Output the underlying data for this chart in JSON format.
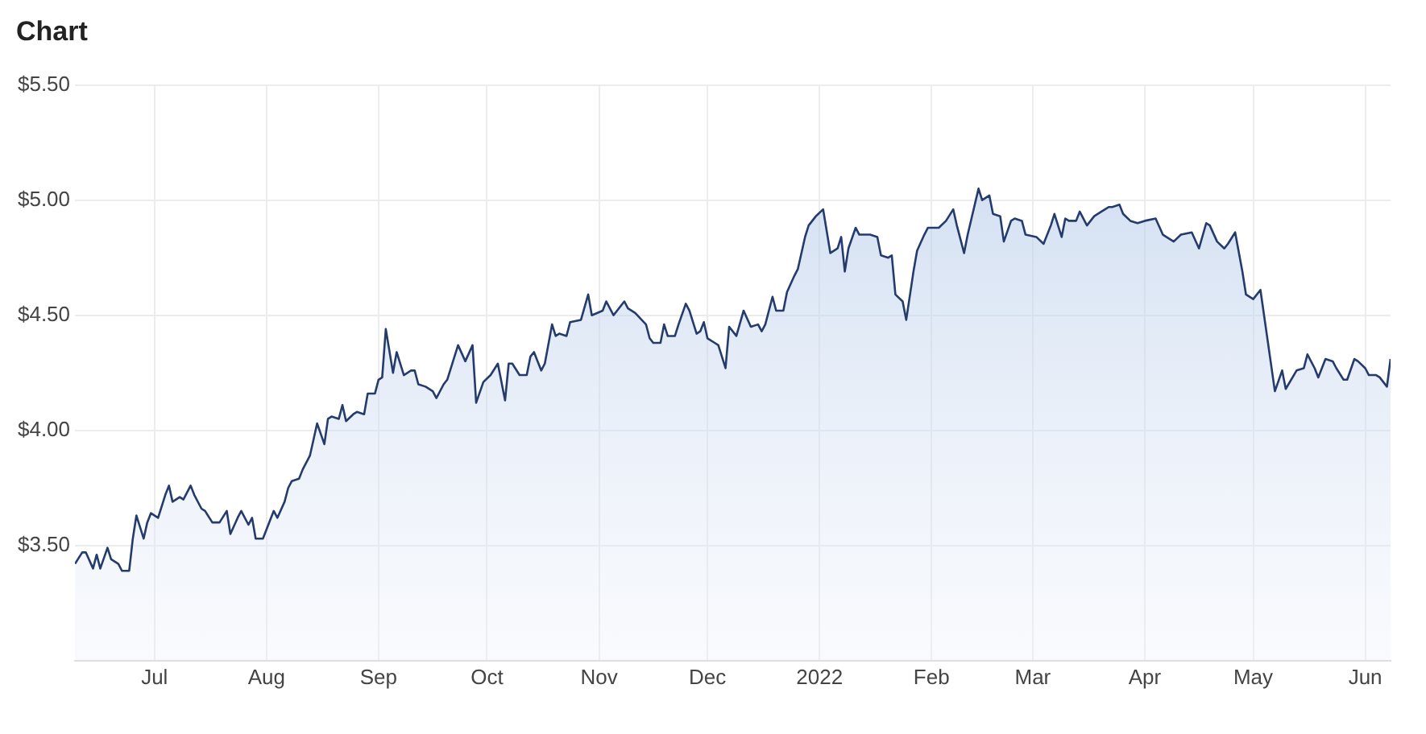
{
  "chart_data": {
    "type": "area",
    "title": "Chart",
    "x": [
      "2021-06-09",
      "2021-06-11",
      "2021-06-12",
      "2021-06-14",
      "2021-06-15",
      "2021-06-16",
      "2021-06-18",
      "2021-06-19",
      "2021-06-21",
      "2021-06-22",
      "2021-06-24",
      "2021-06-25",
      "2021-06-26",
      "2021-06-28",
      "2021-06-29",
      "2021-06-30",
      "2021-07-02",
      "2021-07-04",
      "2021-07-05",
      "2021-07-06",
      "2021-07-08",
      "2021-07-09",
      "2021-07-11",
      "2021-07-12",
      "2021-07-14",
      "2021-07-15",
      "2021-07-17",
      "2021-07-19",
      "2021-07-21",
      "2021-07-22",
      "2021-07-24",
      "2021-07-25",
      "2021-07-27",
      "2021-07-28",
      "2021-07-29",
      "2021-07-31",
      "2021-08-01",
      "2021-08-03",
      "2021-08-04",
      "2021-08-06",
      "2021-08-07",
      "2021-08-08",
      "2021-08-10",
      "2021-08-11",
      "2021-08-13",
      "2021-08-14",
      "2021-08-15",
      "2021-08-17",
      "2021-08-18",
      "2021-08-19",
      "2021-08-21",
      "2021-08-22",
      "2021-08-23",
      "2021-08-25",
      "2021-08-26",
      "2021-08-28",
      "2021-08-29",
      "2021-08-31",
      "2021-09-01",
      "2021-09-02",
      "2021-09-03",
      "2021-09-05",
      "2021-09-06",
      "2021-09-08",
      "2021-09-10",
      "2021-09-11",
      "2021-09-12",
      "2021-09-14",
      "2021-09-16",
      "2021-09-17",
      "2021-09-19",
      "2021-09-20",
      "2021-09-22",
      "2021-09-23",
      "2021-09-25",
      "2021-09-27",
      "2021-09-28",
      "2021-09-30",
      "2021-10-02",
      "2021-10-04",
      "2021-10-06",
      "2021-10-07",
      "2021-10-08",
      "2021-10-10",
      "2021-10-12",
      "2021-10-13",
      "2021-10-14",
      "2021-10-16",
      "2021-10-17",
      "2021-10-19",
      "2021-10-20",
      "2021-10-21",
      "2021-10-23",
      "2021-10-24",
      "2021-10-27",
      "2021-10-29",
      "2021-10-30",
      "2021-11-02",
      "2021-11-03",
      "2021-11-05",
      "2021-11-08",
      "2021-11-09",
      "2021-11-11",
      "2021-11-14",
      "2021-11-15",
      "2021-11-16",
      "2021-11-18",
      "2021-11-19",
      "2021-11-20",
      "2021-11-22",
      "2021-11-23",
      "2021-11-25",
      "2021-11-26",
      "2021-11-28",
      "2021-11-29",
      "2021-11-30",
      "2021-12-01",
      "2021-12-03",
      "2021-12-04",
      "2021-12-06",
      "2021-12-07",
      "2021-12-09",
      "2021-12-11",
      "2021-12-13",
      "2021-12-15",
      "2021-12-16",
      "2021-12-17",
      "2021-12-19",
      "2021-12-20",
      "2021-12-22",
      "2021-12-23",
      "2021-12-25",
      "2021-12-26",
      "2021-12-28",
      "2021-12-29",
      "2021-12-31",
      "2022-01-02",
      "2022-01-04",
      "2022-01-06",
      "2022-01-07",
      "2022-01-08",
      "2022-01-09",
      "2022-01-11",
      "2022-01-12",
      "2022-01-14",
      "2022-01-15",
      "2022-01-17",
      "2022-01-18",
      "2022-01-20",
      "2022-01-21",
      "2022-01-22",
      "2022-01-24",
      "2022-01-25",
      "2022-01-27",
      "2022-01-28",
      "2022-01-30",
      "2022-01-31",
      "2022-02-03",
      "2022-02-05",
      "2022-02-07",
      "2022-02-08",
      "2022-02-10",
      "2022-02-11",
      "2022-02-14",
      "2022-02-15",
      "2022-02-17",
      "2022-02-18",
      "2022-02-20",
      "2022-02-21",
      "2022-02-23",
      "2022-02-24",
      "2022-02-26",
      "2022-02-27",
      "2022-03-02",
      "2022-03-04",
      "2022-03-06",
      "2022-03-07",
      "2022-03-09",
      "2022-03-10",
      "2022-03-11",
      "2022-03-13",
      "2022-03-14",
      "2022-03-16",
      "2022-03-18",
      "2022-03-20",
      "2022-03-21",
      "2022-03-22",
      "2022-03-23",
      "2022-03-25",
      "2022-03-26",
      "2022-03-28",
      "2022-03-30",
      "2022-04-01",
      "2022-04-04",
      "2022-04-06",
      "2022-04-09",
      "2022-04-11",
      "2022-04-14",
      "2022-04-16",
      "2022-04-18",
      "2022-04-19",
      "2022-04-21",
      "2022-04-23",
      "2022-04-24",
      "2022-04-26",
      "2022-04-28",
      "2022-04-29",
      "2022-05-01",
      "2022-05-03",
      "2022-05-07",
      "2022-05-09",
      "2022-05-10",
      "2022-05-13",
      "2022-05-15",
      "2022-05-16",
      "2022-05-18",
      "2022-05-19",
      "2022-05-21",
      "2022-05-23",
      "2022-05-24",
      "2022-05-26",
      "2022-05-27",
      "2022-05-29",
      "2022-05-30",
      "2022-06-01",
      "2022-06-02",
      "2022-06-04",
      "2022-06-05",
      "2022-06-07",
      "2022-06-08"
    ],
    "series": [
      {
        "color": "#243b6b",
        "values": [
          3.42,
          3.47,
          3.47,
          3.4,
          3.46,
          3.4,
          3.49,
          3.44,
          3.42,
          3.39,
          3.39,
          3.53,
          3.63,
          3.53,
          3.6,
          3.64,
          3.62,
          3.72,
          3.76,
          3.69,
          3.71,
          3.7,
          3.76,
          3.72,
          3.66,
          3.65,
          3.6,
          3.6,
          3.65,
          3.55,
          3.62,
          3.65,
          3.59,
          3.62,
          3.53,
          3.53,
          3.57,
          3.65,
          3.62,
          3.69,
          3.75,
          3.78,
          3.79,
          3.83,
          3.89,
          3.96,
          4.03,
          3.94,
          4.05,
          4.06,
          4.05,
          4.11,
          4.04,
          4.07,
          4.08,
          4.07,
          4.16,
          4.16,
          4.22,
          4.23,
          4.44,
          4.25,
          4.34,
          4.24,
          4.26,
          4.26,
          4.2,
          4.19,
          4.17,
          4.14,
          4.2,
          4.22,
          4.32,
          4.37,
          4.3,
          4.37,
          4.12,
          4.21,
          4.24,
          4.29,
          4.13,
          4.29,
          4.29,
          4.24,
          4.24,
          4.32,
          4.34,
          4.26,
          4.29,
          4.46,
          4.41,
          4.42,
          4.41,
          4.47,
          4.48,
          4.59,
          4.5,
          4.52,
          4.56,
          4.5,
          4.56,
          4.53,
          4.51,
          4.46,
          4.4,
          4.38,
          4.38,
          4.46,
          4.41,
          4.41,
          4.46,
          4.55,
          4.52,
          4.42,
          4.43,
          4.47,
          4.4,
          4.38,
          4.37,
          4.27,
          4.45,
          4.41,
          4.52,
          4.45,
          4.46,
          4.43,
          4.46,
          4.58,
          4.52,
          4.52,
          4.6,
          4.67,
          4.7,
          4.84,
          4.89,
          4.93,
          4.96,
          4.77,
          4.79,
          4.84,
          4.69,
          4.79,
          4.88,
          4.85,
          4.85,
          4.85,
          4.84,
          4.76,
          4.75,
          4.76,
          4.59,
          4.56,
          4.48,
          4.69,
          4.78,
          4.85,
          4.88,
          4.88,
          4.91,
          4.96,
          4.89,
          4.77,
          4.85,
          5.05,
          5.0,
          5.02,
          4.94,
          4.93,
          4.82,
          4.91,
          4.92,
          4.91,
          4.85,
          4.84,
          4.81,
          4.89,
          4.94,
          4.84,
          4.92,
          4.91,
          4.91,
          4.95,
          4.89,
          4.93,
          4.95,
          4.96,
          4.97,
          4.97,
          4.98,
          4.94,
          4.91,
          4.9,
          4.91,
          4.92,
          4.85,
          4.82,
          4.85,
          4.86,
          4.79,
          4.9,
          4.89,
          4.82,
          4.79,
          4.81,
          4.86,
          4.69,
          4.59,
          4.57,
          4.61,
          4.17,
          4.26,
          4.18,
          4.26,
          4.27,
          4.33,
          4.27,
          4.23,
          4.31,
          4.3,
          4.27,
          4.22,
          4.22,
          4.31,
          4.3,
          4.27,
          4.24,
          4.24,
          4.23,
          4.19,
          4.31
        ]
      }
    ],
    "xlim": [
      "2021-06-09",
      "2022-06-08"
    ],
    "xticks": [
      {
        "value": "2021-07-01",
        "label": "Jul"
      },
      {
        "value": "2021-08-01",
        "label": "Aug"
      },
      {
        "value": "2021-09-01",
        "label": "Sep"
      },
      {
        "value": "2021-10-01",
        "label": "Oct"
      },
      {
        "value": "2021-11-01",
        "label": "Nov"
      },
      {
        "value": "2021-12-01",
        "label": "Dec"
      },
      {
        "value": "2022-01-01",
        "label": "2022"
      },
      {
        "value": "2022-02-01",
        "label": "Feb"
      },
      {
        "value": "2022-03-01",
        "label": "Mar"
      },
      {
        "value": "2022-04-01",
        "label": "Apr"
      },
      {
        "value": "2022-05-01",
        "label": "May"
      },
      {
        "value": "2022-06-01",
        "label": "Jun"
      }
    ],
    "ylim": [
      3.0,
      5.5
    ],
    "yticks": [
      {
        "value": 3.5,
        "label": "$3.50"
      },
      {
        "value": 4.0,
        "label": "$4.00"
      },
      {
        "value": 4.5,
        "label": "$4.50"
      },
      {
        "value": 5.0,
        "label": "$5.00"
      },
      {
        "value": 5.5,
        "label": "$5.50"
      }
    ],
    "grid": true,
    "legend": false,
    "marker": "none",
    "line_style": "solid"
  }
}
